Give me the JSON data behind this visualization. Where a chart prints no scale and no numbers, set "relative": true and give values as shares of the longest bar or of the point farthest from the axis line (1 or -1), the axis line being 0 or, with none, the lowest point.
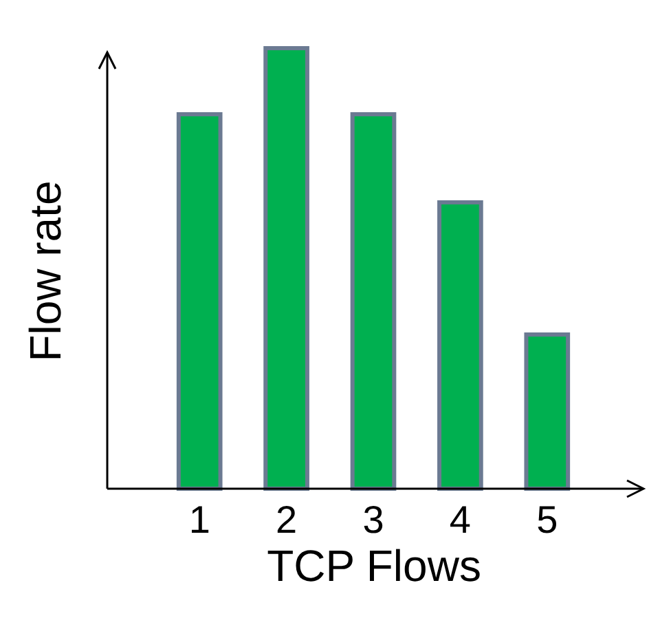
{
  "chart_data": {
    "type": "bar",
    "relative": true,
    "xlabel": "TCP Flows",
    "ylabel": "Flow rate",
    "categories": [
      "1",
      "2",
      "3",
      "4",
      "5"
    ],
    "values": [
      0.85,
      1,
      0.85,
      0.65,
      0.35
    ],
    "color": "#00b050"
  }
}
